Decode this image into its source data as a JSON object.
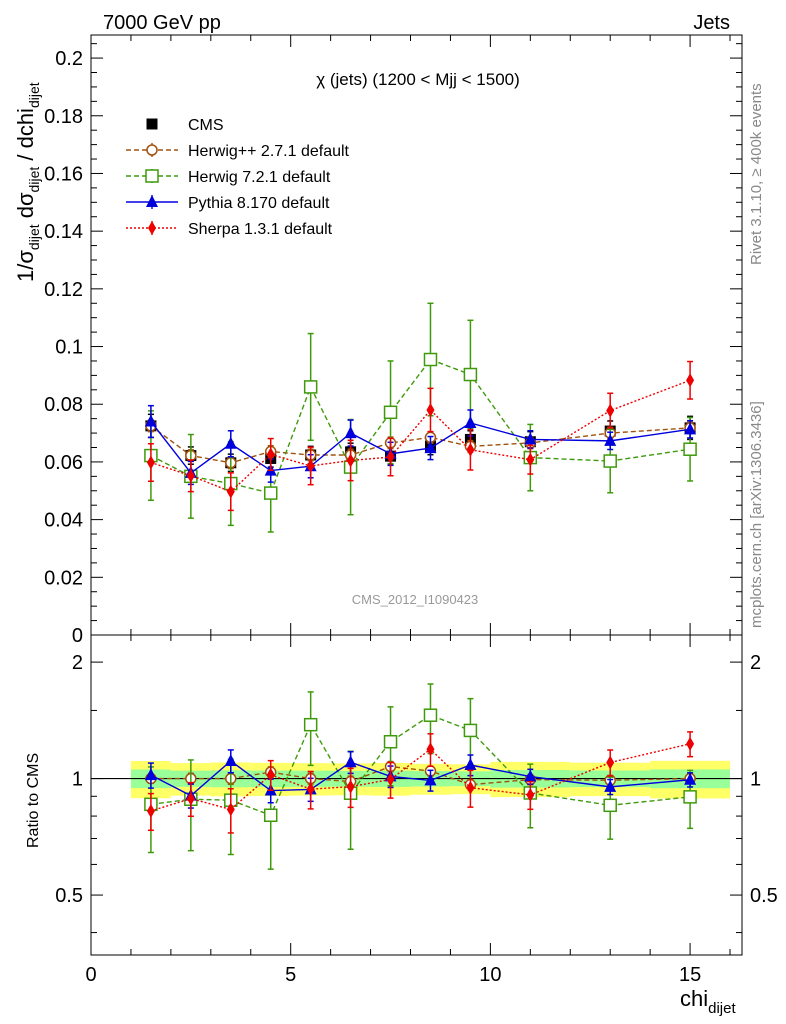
{
  "header": {
    "left": "7000 GeV pp",
    "right": "Jets"
  },
  "side_labels": {
    "rivet": "Rivet 3.1.10, ≥ 400k events",
    "mcplots": "mcplots.cern.ch [arXiv:1306.3436]"
  },
  "chart_data": {
    "type": "scatter",
    "title": "χ (jets) (1200 < Mjj < 1500)",
    "analysis_id": "CMS_2012_I1090423",
    "xlabel": "chi",
    "xlabel_sub": "dijet",
    "ylabel": {
      "prefix": "1/σ",
      "sub1": "dijet",
      "mid": " dσ",
      "sub2": "dijet",
      "suffix": " / dchi",
      "sub3": "dijet"
    },
    "ratio_ylabel": "Ratio to CMS",
    "xlim": [
      0,
      16.3
    ],
    "ylim": [
      0,
      0.208
    ],
    "ratio_ylim": [
      0.35,
      2.35
    ],
    "x_ticks": [
      0,
      5,
      10,
      15
    ],
    "y_ticks": [
      0,
      0.02,
      0.04,
      0.06,
      0.08,
      0.1,
      0.12,
      0.14,
      0.16,
      0.18,
      0.2
    ],
    "y_tick_labels": [
      "0",
      "0.02",
      "0.04",
      "0.06",
      "0.08",
      "0.1",
      "0.12",
      "0.14",
      "0.16",
      "0.18",
      "0.2"
    ],
    "ratio_ticks": [
      0.5,
      1,
      2
    ],
    "ratio_tick_labels": [
      "0.5",
      "1",
      "2"
    ],
    "ratio_log": true,
    "grid": false,
    "legend_position": "top-left",
    "x": [
      1.5,
      2.5,
      3.5,
      4.5,
      5.5,
      6.5,
      7.5,
      8.5,
      9.5,
      11,
      13,
      15
    ],
    "x_bins": [
      [
        1,
        2
      ],
      [
        2,
        3
      ],
      [
        3,
        4
      ],
      [
        4,
        5
      ],
      [
        5,
        6
      ],
      [
        6,
        7
      ],
      [
        7,
        8
      ],
      [
        8,
        9
      ],
      [
        9,
        10
      ],
      [
        10,
        12
      ],
      [
        12,
        14
      ],
      [
        14,
        16
      ]
    ],
    "reference": {
      "name": "CMS",
      "color": "#000000",
      "values": [
        0.0725,
        0.0622,
        0.0597,
        0.0612,
        0.0624,
        0.0635,
        0.062,
        0.0655,
        0.0678,
        0.067,
        0.0707,
        0.0718
      ],
      "errors": [
        0.004,
        0.003,
        0.003,
        0.003,
        0.003,
        0.003,
        0.003,
        0.003,
        0.003,
        0.0035,
        0.0035,
        0.004
      ]
    },
    "series": [
      {
        "name": "Herwig++ 2.7.1 default",
        "color": "#a0520d",
        "marker": "open-circle",
        "dash": "5,3",
        "values": [
          0.0725,
          0.0622,
          0.0597,
          0.0636,
          0.0624,
          0.0624,
          0.0666,
          0.0685,
          0.0654,
          0.0666,
          0.07,
          0.0718
        ],
        "errors": [
          0.002,
          0.002,
          0.002,
          0.002,
          0.002,
          0.002,
          0.002,
          0.002,
          0.002,
          0.002,
          0.002,
          0.002
        ]
      },
      {
        "name": "Herwig 7.2.1 default",
        "color": "#3e9a0b",
        "marker": "open-square",
        "dash": "5,3",
        "values": [
          0.0622,
          0.055,
          0.0525,
          0.0492,
          0.086,
          0.0582,
          0.0772,
          0.0955,
          0.0903,
          0.0615,
          0.0603,
          0.0644
        ],
        "errors": [
          0.0155,
          0.0145,
          0.0145,
          0.0135,
          0.0185,
          0.0165,
          0.0178,
          0.0195,
          0.0188,
          0.0115,
          0.011,
          0.011
        ]
      },
      {
        "name": "Pythia 8.170 default",
        "color": "#0000dd",
        "marker": "filled-triangle",
        "dash": "",
        "values": [
          0.074,
          0.0562,
          0.0663,
          0.057,
          0.0585,
          0.07,
          0.0628,
          0.0648,
          0.0735,
          0.0678,
          0.0673,
          0.0713
        ],
        "errors": [
          0.0055,
          0.004,
          0.0045,
          0.004,
          0.004,
          0.0045,
          0.004,
          0.004,
          0.0045,
          0.003,
          0.003,
          0.003
        ]
      },
      {
        "name": "Sherpa 1.3.1 default",
        "color": "#ee0000",
        "marker": "filled-diamond",
        "dash": "2,2",
        "values": [
          0.0598,
          0.0552,
          0.0497,
          0.0626,
          0.0586,
          0.0605,
          0.0617,
          0.078,
          0.0642,
          0.0608,
          0.0778,
          0.0883
        ],
        "errors": [
          0.0065,
          0.0055,
          0.0065,
          0.0055,
          0.0065,
          0.007,
          0.0065,
          0.0075,
          0.007,
          0.005,
          0.006,
          0.0065
        ]
      }
    ]
  }
}
